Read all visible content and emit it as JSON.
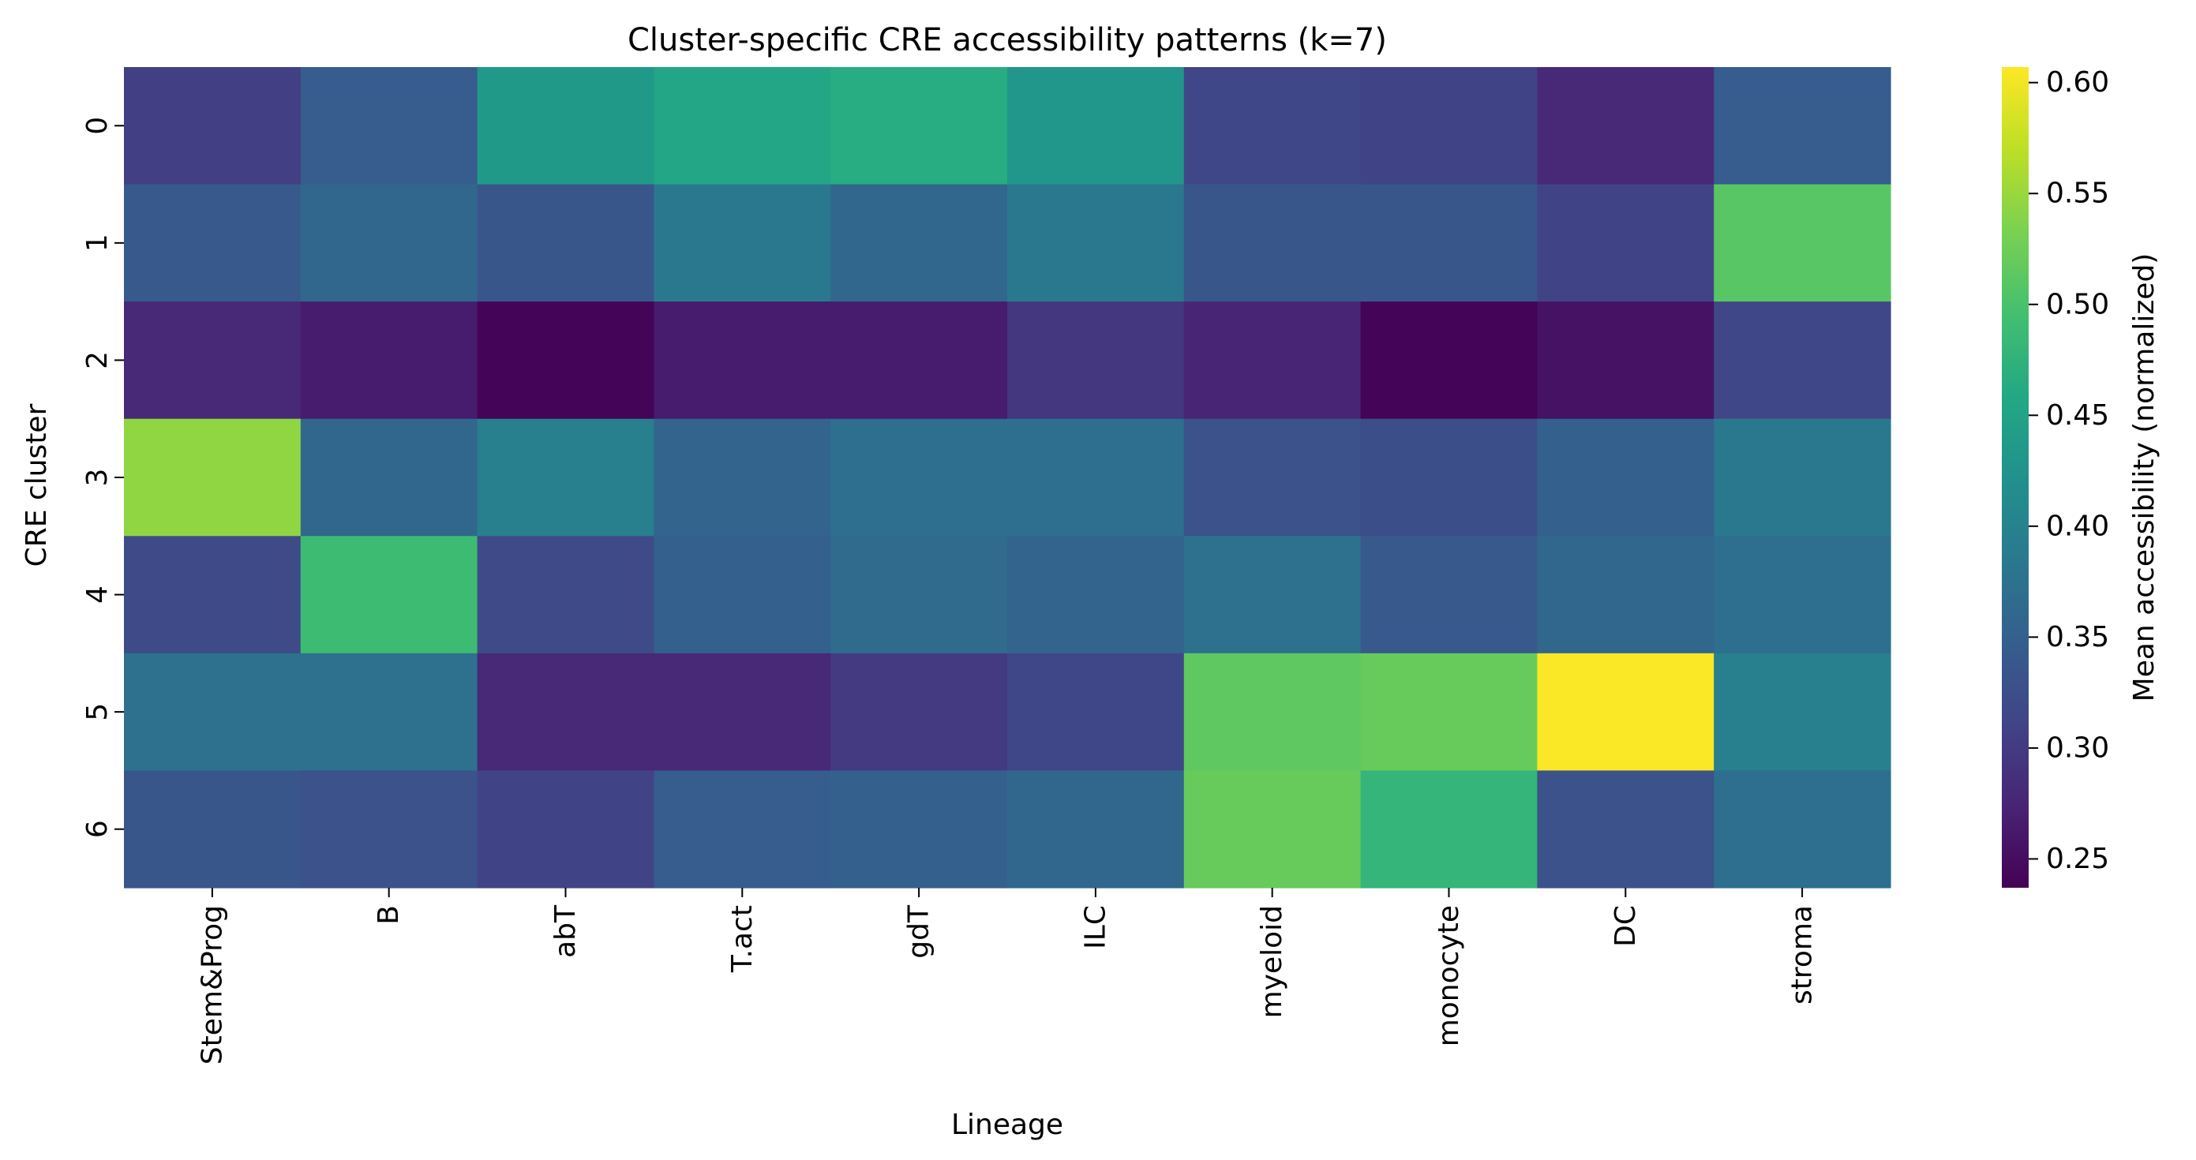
{
  "chart_data": {
    "type": "heatmap",
    "title": "Cluster-specific CRE accessibility patterns (k=7)",
    "xlabel": "Lineage",
    "ylabel": "CRE cluster",
    "x_categories": [
      "Stem&Prog",
      "B",
      "abT",
      "T.act",
      "gdT",
      "ILC",
      "myeloid",
      "monocyte",
      "DC",
      "stroma"
    ],
    "y_categories": [
      "0",
      "1",
      "2",
      "3",
      "4",
      "5",
      "6"
    ],
    "values": [
      [
        0.305,
        0.345,
        0.435,
        0.455,
        0.465,
        0.43,
        0.315,
        0.31,
        0.28,
        0.345
      ],
      [
        0.34,
        0.36,
        0.335,
        0.385,
        0.36,
        0.385,
        0.335,
        0.335,
        0.31,
        0.51
      ],
      [
        0.28,
        0.265,
        0.24,
        0.265,
        0.265,
        0.295,
        0.275,
        0.24,
        0.255,
        0.315
      ],
      [
        0.545,
        0.36,
        0.395,
        0.355,
        0.37,
        0.37,
        0.33,
        0.325,
        0.35,
        0.385
      ],
      [
        0.32,
        0.49,
        0.32,
        0.35,
        0.365,
        0.355,
        0.375,
        0.34,
        0.36,
        0.37
      ],
      [
        0.375,
        0.375,
        0.28,
        0.28,
        0.3,
        0.315,
        0.515,
        0.52,
        0.605,
        0.395
      ],
      [
        0.335,
        0.33,
        0.31,
        0.345,
        0.35,
        0.36,
        0.52,
        0.48,
        0.33,
        0.37
      ]
    ],
    "colorbar": {
      "label": "Mean accessibility (normalized)",
      "min": 0.237,
      "max": 0.607,
      "ticks": [
        "0.25",
        "0.30",
        "0.35",
        "0.40",
        "0.45",
        "0.50",
        "0.55",
        "0.60"
      ],
      "colormap": "viridis"
    },
    "grid": false
  }
}
